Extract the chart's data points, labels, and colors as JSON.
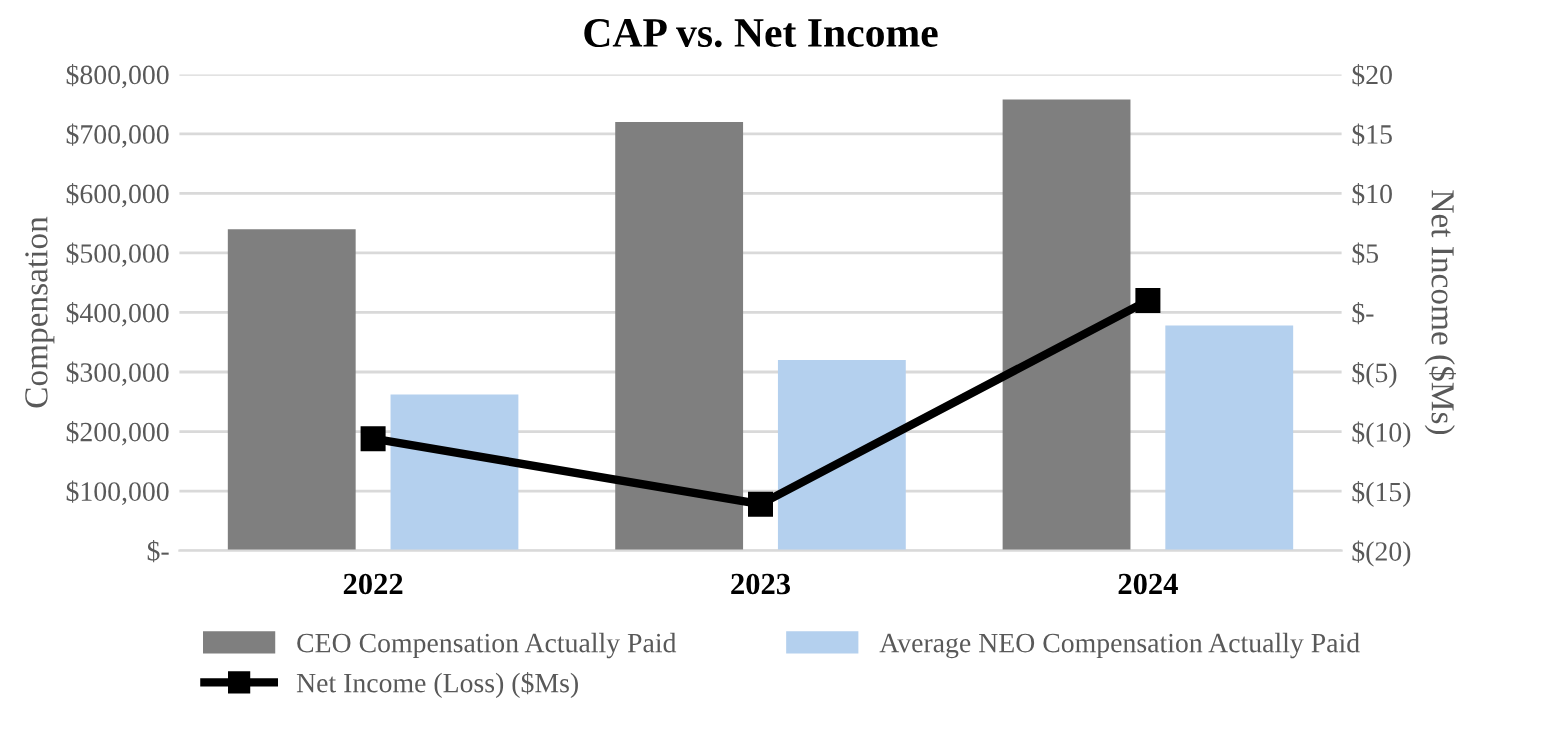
{
  "chart_data": {
    "type": "bar",
    "title": "CAP vs. Net Income",
    "ylabel": "Compensation",
    "y2label": "Net Income ($Ms)",
    "categories": [
      "2022",
      "2023",
      "2024"
    ],
    "series": [
      {
        "name": "CEO Compensation Actually Paid",
        "color": "#7f7f7f",
        "values": [
          540000,
          720000,
          758000
        ]
      },
      {
        "name": "Average NEO Compensation Actually Paid",
        "color": "#b4d0ee",
        "values": [
          262000,
          320000,
          378000
        ]
      },
      {
        "name": "Net Income (Loss) ($Ms)",
        "type": "line",
        "axis": "y2",
        "color": "#000000",
        "marker": "square",
        "values": [
          -10.6,
          -16.1,
          1
        ]
      }
    ],
    "ylim": [
      0,
      800000
    ],
    "yticks": [
      {
        "value": 0,
        "label": "$-"
      },
      {
        "value": 100000,
        "label": "$100,000"
      },
      {
        "value": 200000,
        "label": "$200,000"
      },
      {
        "value": 300000,
        "label": "$300,000"
      },
      {
        "value": 400000,
        "label": "$400,000"
      },
      {
        "value": 500000,
        "label": "$500,000"
      },
      {
        "value": 600000,
        "label": "$600,000"
      },
      {
        "value": 700000,
        "label": "$700,000"
      },
      {
        "value": 800000,
        "label": "$800,000"
      }
    ],
    "y2lim": [
      -20,
      20
    ],
    "y2ticks": [
      {
        "value": -20,
        "label": "$(20)"
      },
      {
        "value": -15,
        "label": "$(15)"
      },
      {
        "value": -10,
        "label": "$(10)"
      },
      {
        "value": -5,
        "label": "$(5)"
      },
      {
        "value": 0,
        "label": "$-"
      },
      {
        "value": 5,
        "label": "$5"
      },
      {
        "value": 10,
        "label": "$10"
      },
      {
        "value": 15,
        "label": "$15"
      },
      {
        "value": 20,
        "label": "$20"
      }
    ],
    "grid": "y",
    "legend": "bottom"
  }
}
